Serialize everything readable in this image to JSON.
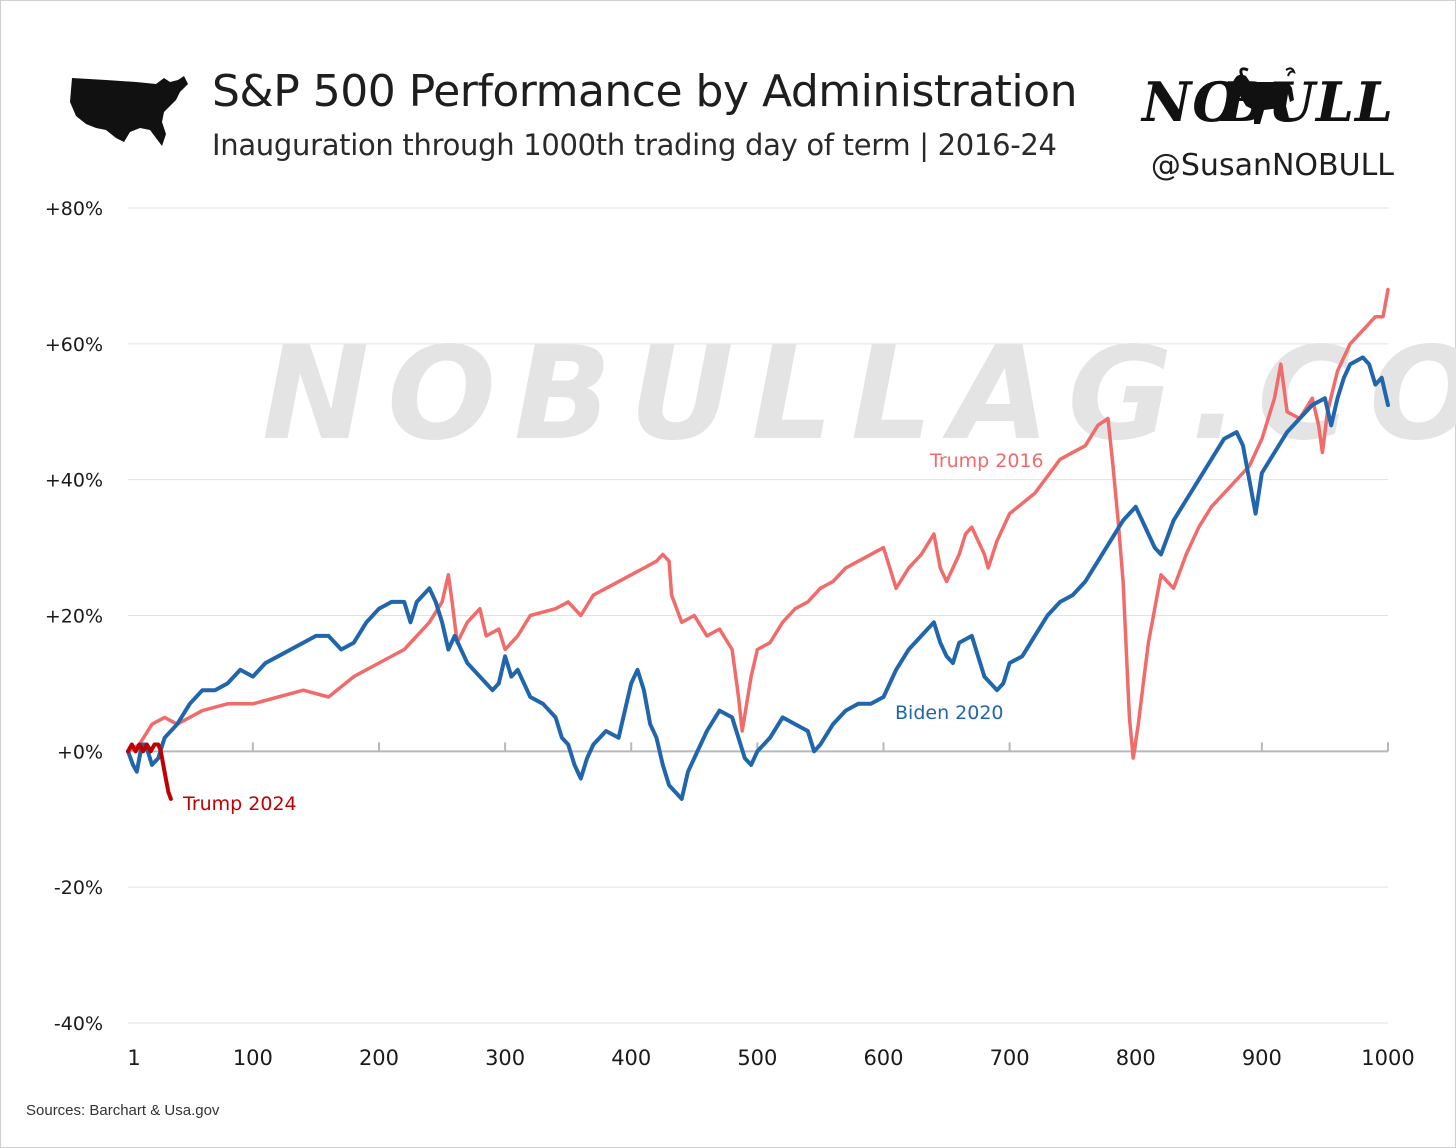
{
  "header": {
    "title": "S&P 500 Performance by Administration",
    "subtitle": "Inauguration through 1000th trading day of term | 2016-24",
    "map_icon": "usa-map-icon"
  },
  "brand": {
    "logo_left": "NO",
    "logo_right": "BULL",
    "logo_icon": "bull-icon",
    "handle": "@SusanNOBULL",
    "watermark": "NOBULLAG.COM"
  },
  "footer": {
    "sources": "Sources: Barchart & Usa.gov"
  },
  "chart_data": {
    "type": "line",
    "title": "S&P 500 Performance by Administration",
    "subtitle": "Inauguration through 1000th trading day of term | 2016-24",
    "xlabel": "",
    "ylabel": "",
    "xlim": [
      1,
      1000
    ],
    "ylim": [
      -40,
      80
    ],
    "x_ticks": [
      1,
      100,
      200,
      300,
      400,
      500,
      600,
      700,
      800,
      900,
      1000
    ],
    "x_tick_labels": [
      "1",
      "100",
      "200",
      "300",
      "400",
      "500",
      "600",
      "700",
      "800",
      "900",
      "1000"
    ],
    "y_ticks": [
      80,
      60,
      40,
      20,
      0,
      -20,
      -40
    ],
    "y_tick_labels": [
      "+80%",
      "+60%",
      "+40%",
      "+20%",
      "+0%",
      "-20%",
      "-40%"
    ],
    "grid": "horizontal",
    "legend": "inline labels",
    "series": [
      {
        "name": "Trump 2016",
        "color": "#f26b6b",
        "points": [
          [
            1,
            0
          ],
          [
            10,
            1
          ],
          [
            20,
            4
          ],
          [
            30,
            5
          ],
          [
            40,
            4
          ],
          [
            50,
            5
          ],
          [
            60,
            6
          ],
          [
            80,
            7
          ],
          [
            100,
            7
          ],
          [
            120,
            8
          ],
          [
            140,
            9
          ],
          [
            160,
            8
          ],
          [
            180,
            11
          ],
          [
            200,
            13
          ],
          [
            220,
            15
          ],
          [
            240,
            19
          ],
          [
            250,
            22
          ],
          [
            255,
            26
          ],
          [
            258,
            22
          ],
          [
            262,
            16
          ],
          [
            270,
            19
          ],
          [
            280,
            21
          ],
          [
            285,
            17
          ],
          [
            295,
            18
          ],
          [
            300,
            15
          ],
          [
            310,
            17
          ],
          [
            320,
            20
          ],
          [
            340,
            21
          ],
          [
            350,
            22
          ],
          [
            360,
            20
          ],
          [
            370,
            23
          ],
          [
            380,
            24
          ],
          [
            400,
            26
          ],
          [
            410,
            27
          ],
          [
            420,
            28
          ],
          [
            425,
            29
          ],
          [
            430,
            28
          ],
          [
            432,
            23
          ],
          [
            440,
            19
          ],
          [
            450,
            20
          ],
          [
            460,
            17
          ],
          [
            470,
            18
          ],
          [
            480,
            15
          ],
          [
            485,
            8
          ],
          [
            488,
            3
          ],
          [
            495,
            11
          ],
          [
            500,
            15
          ],
          [
            510,
            16
          ],
          [
            520,
            19
          ],
          [
            530,
            21
          ],
          [
            540,
            22
          ],
          [
            550,
            24
          ],
          [
            560,
            25
          ],
          [
            570,
            27
          ],
          [
            580,
            28
          ],
          [
            590,
            29
          ],
          [
            600,
            30
          ],
          [
            605,
            27
          ],
          [
            610,
            24
          ],
          [
            620,
            27
          ],
          [
            630,
            29
          ],
          [
            640,
            32
          ],
          [
            645,
            27
          ],
          [
            650,
            25
          ],
          [
            660,
            29
          ],
          [
            665,
            32
          ],
          [
            670,
            33
          ],
          [
            680,
            29
          ],
          [
            683,
            27
          ],
          [
            690,
            31
          ],
          [
            700,
            35
          ],
          [
            720,
            38
          ],
          [
            740,
            43
          ],
          [
            760,
            45
          ],
          [
            770,
            48
          ],
          [
            778,
            49
          ],
          [
            782,
            42
          ],
          [
            786,
            34
          ],
          [
            790,
            25
          ],
          [
            795,
            5
          ],
          [
            798,
            -1
          ],
          [
            802,
            4
          ],
          [
            806,
            10
          ],
          [
            810,
            16
          ],
          [
            820,
            26
          ],
          [
            830,
            24
          ],
          [
            840,
            29
          ],
          [
            850,
            33
          ],
          [
            860,
            36
          ],
          [
            870,
            38
          ],
          [
            880,
            40
          ],
          [
            890,
            42
          ],
          [
            895,
            44
          ],
          [
            900,
            46
          ],
          [
            910,
            52
          ],
          [
            915,
            57
          ],
          [
            920,
            50
          ],
          [
            930,
            49
          ],
          [
            940,
            52
          ],
          [
            945,
            48
          ],
          [
            948,
            44
          ],
          [
            952,
            50
          ],
          [
            960,
            56
          ],
          [
            970,
            60
          ],
          [
            980,
            62
          ],
          [
            990,
            64
          ],
          [
            996,
            64
          ],
          [
            1000,
            68
          ]
        ]
      },
      {
        "name": "Biden 2020",
        "color": "#2166ac",
        "points": [
          [
            1,
            0
          ],
          [
            5,
            -2
          ],
          [
            8,
            -3
          ],
          [
            12,
            1
          ],
          [
            15,
            1
          ],
          [
            20,
            -2
          ],
          [
            25,
            -1
          ],
          [
            30,
            2
          ],
          [
            40,
            4
          ],
          [
            50,
            7
          ],
          [
            60,
            9
          ],
          [
            70,
            9
          ],
          [
            80,
            10
          ],
          [
            90,
            12
          ],
          [
            100,
            11
          ],
          [
            110,
            13
          ],
          [
            120,
            14
          ],
          [
            130,
            15
          ],
          [
            140,
            16
          ],
          [
            150,
            17
          ],
          [
            160,
            17
          ],
          [
            170,
            15
          ],
          [
            180,
            16
          ],
          [
            190,
            19
          ],
          [
            200,
            21
          ],
          [
            210,
            22
          ],
          [
            220,
            22
          ],
          [
            225,
            19
          ],
          [
            230,
            22
          ],
          [
            240,
            24
          ],
          [
            245,
            22
          ],
          [
            250,
            19
          ],
          [
            255,
            15
          ],
          [
            260,
            17
          ],
          [
            270,
            13
          ],
          [
            280,
            11
          ],
          [
            290,
            9
          ],
          [
            295,
            10
          ],
          [
            300,
            14
          ],
          [
            305,
            11
          ],
          [
            310,
            12
          ],
          [
            320,
            8
          ],
          [
            330,
            7
          ],
          [
            340,
            5
          ],
          [
            345,
            2
          ],
          [
            350,
            1
          ],
          [
            355,
            -2
          ],
          [
            360,
            -4
          ],
          [
            365,
            -1
          ],
          [
            370,
            1
          ],
          [
            380,
            3
          ],
          [
            390,
            2
          ],
          [
            395,
            6
          ],
          [
            400,
            10
          ],
          [
            405,
            12
          ],
          [
            410,
            9
          ],
          [
            415,
            4
          ],
          [
            420,
            2
          ],
          [
            425,
            -2
          ],
          [
            430,
            -5
          ],
          [
            435,
            -6
          ],
          [
            440,
            -7
          ],
          [
            445,
            -3
          ],
          [
            450,
            -1
          ],
          [
            460,
            3
          ],
          [
            470,
            6
          ],
          [
            480,
            5
          ],
          [
            490,
            -1
          ],
          [
            495,
            -2
          ],
          [
            500,
            0
          ],
          [
            510,
            2
          ],
          [
            520,
            5
          ],
          [
            530,
            4
          ],
          [
            540,
            3
          ],
          [
            545,
            0
          ],
          [
            550,
            1
          ],
          [
            560,
            4
          ],
          [
            570,
            6
          ],
          [
            580,
            7
          ],
          [
            590,
            7
          ],
          [
            600,
            8
          ],
          [
            610,
            12
          ],
          [
            620,
            15
          ],
          [
            630,
            17
          ],
          [
            640,
            19
          ],
          [
            645,
            16
          ],
          [
            650,
            14
          ],
          [
            655,
            13
          ],
          [
            660,
            16
          ],
          [
            670,
            17
          ],
          [
            675,
            14
          ],
          [
            680,
            11
          ],
          [
            690,
            9
          ],
          [
            695,
            10
          ],
          [
            700,
            13
          ],
          [
            710,
            14
          ],
          [
            720,
            17
          ],
          [
            730,
            20
          ],
          [
            740,
            22
          ],
          [
            750,
            23
          ],
          [
            760,
            25
          ],
          [
            770,
            28
          ],
          [
            780,
            31
          ],
          [
            790,
            34
          ],
          [
            800,
            36
          ],
          [
            805,
            34
          ],
          [
            810,
            32
          ],
          [
            815,
            30
          ],
          [
            820,
            29
          ],
          [
            830,
            34
          ],
          [
            840,
            37
          ],
          [
            850,
            40
          ],
          [
            860,
            43
          ],
          [
            870,
            46
          ],
          [
            880,
            47
          ],
          [
            885,
            45
          ],
          [
            890,
            40
          ],
          [
            895,
            35
          ],
          [
            900,
            41
          ],
          [
            910,
            44
          ],
          [
            920,
            47
          ],
          [
            930,
            49
          ],
          [
            940,
            51
          ],
          [
            950,
            52
          ],
          [
            955,
            48
          ],
          [
            960,
            52
          ],
          [
            965,
            55
          ],
          [
            970,
            57
          ],
          [
            980,
            58
          ],
          [
            985,
            57
          ],
          [
            990,
            54
          ],
          [
            995,
            55
          ],
          [
            1000,
            51
          ]
        ]
      },
      {
        "name": "Trump 2024",
        "color": "#c00000",
        "points": [
          [
            1,
            0
          ],
          [
            4,
            1
          ],
          [
            7,
            0
          ],
          [
            10,
            1
          ],
          [
            13,
            0
          ],
          [
            16,
            1
          ],
          [
            19,
            0
          ],
          [
            22,
            1
          ],
          [
            25,
            1
          ],
          [
            27,
            0
          ],
          [
            29,
            -2
          ],
          [
            31,
            -4
          ],
          [
            33,
            -6
          ],
          [
            35,
            -7
          ]
        ]
      }
    ]
  }
}
